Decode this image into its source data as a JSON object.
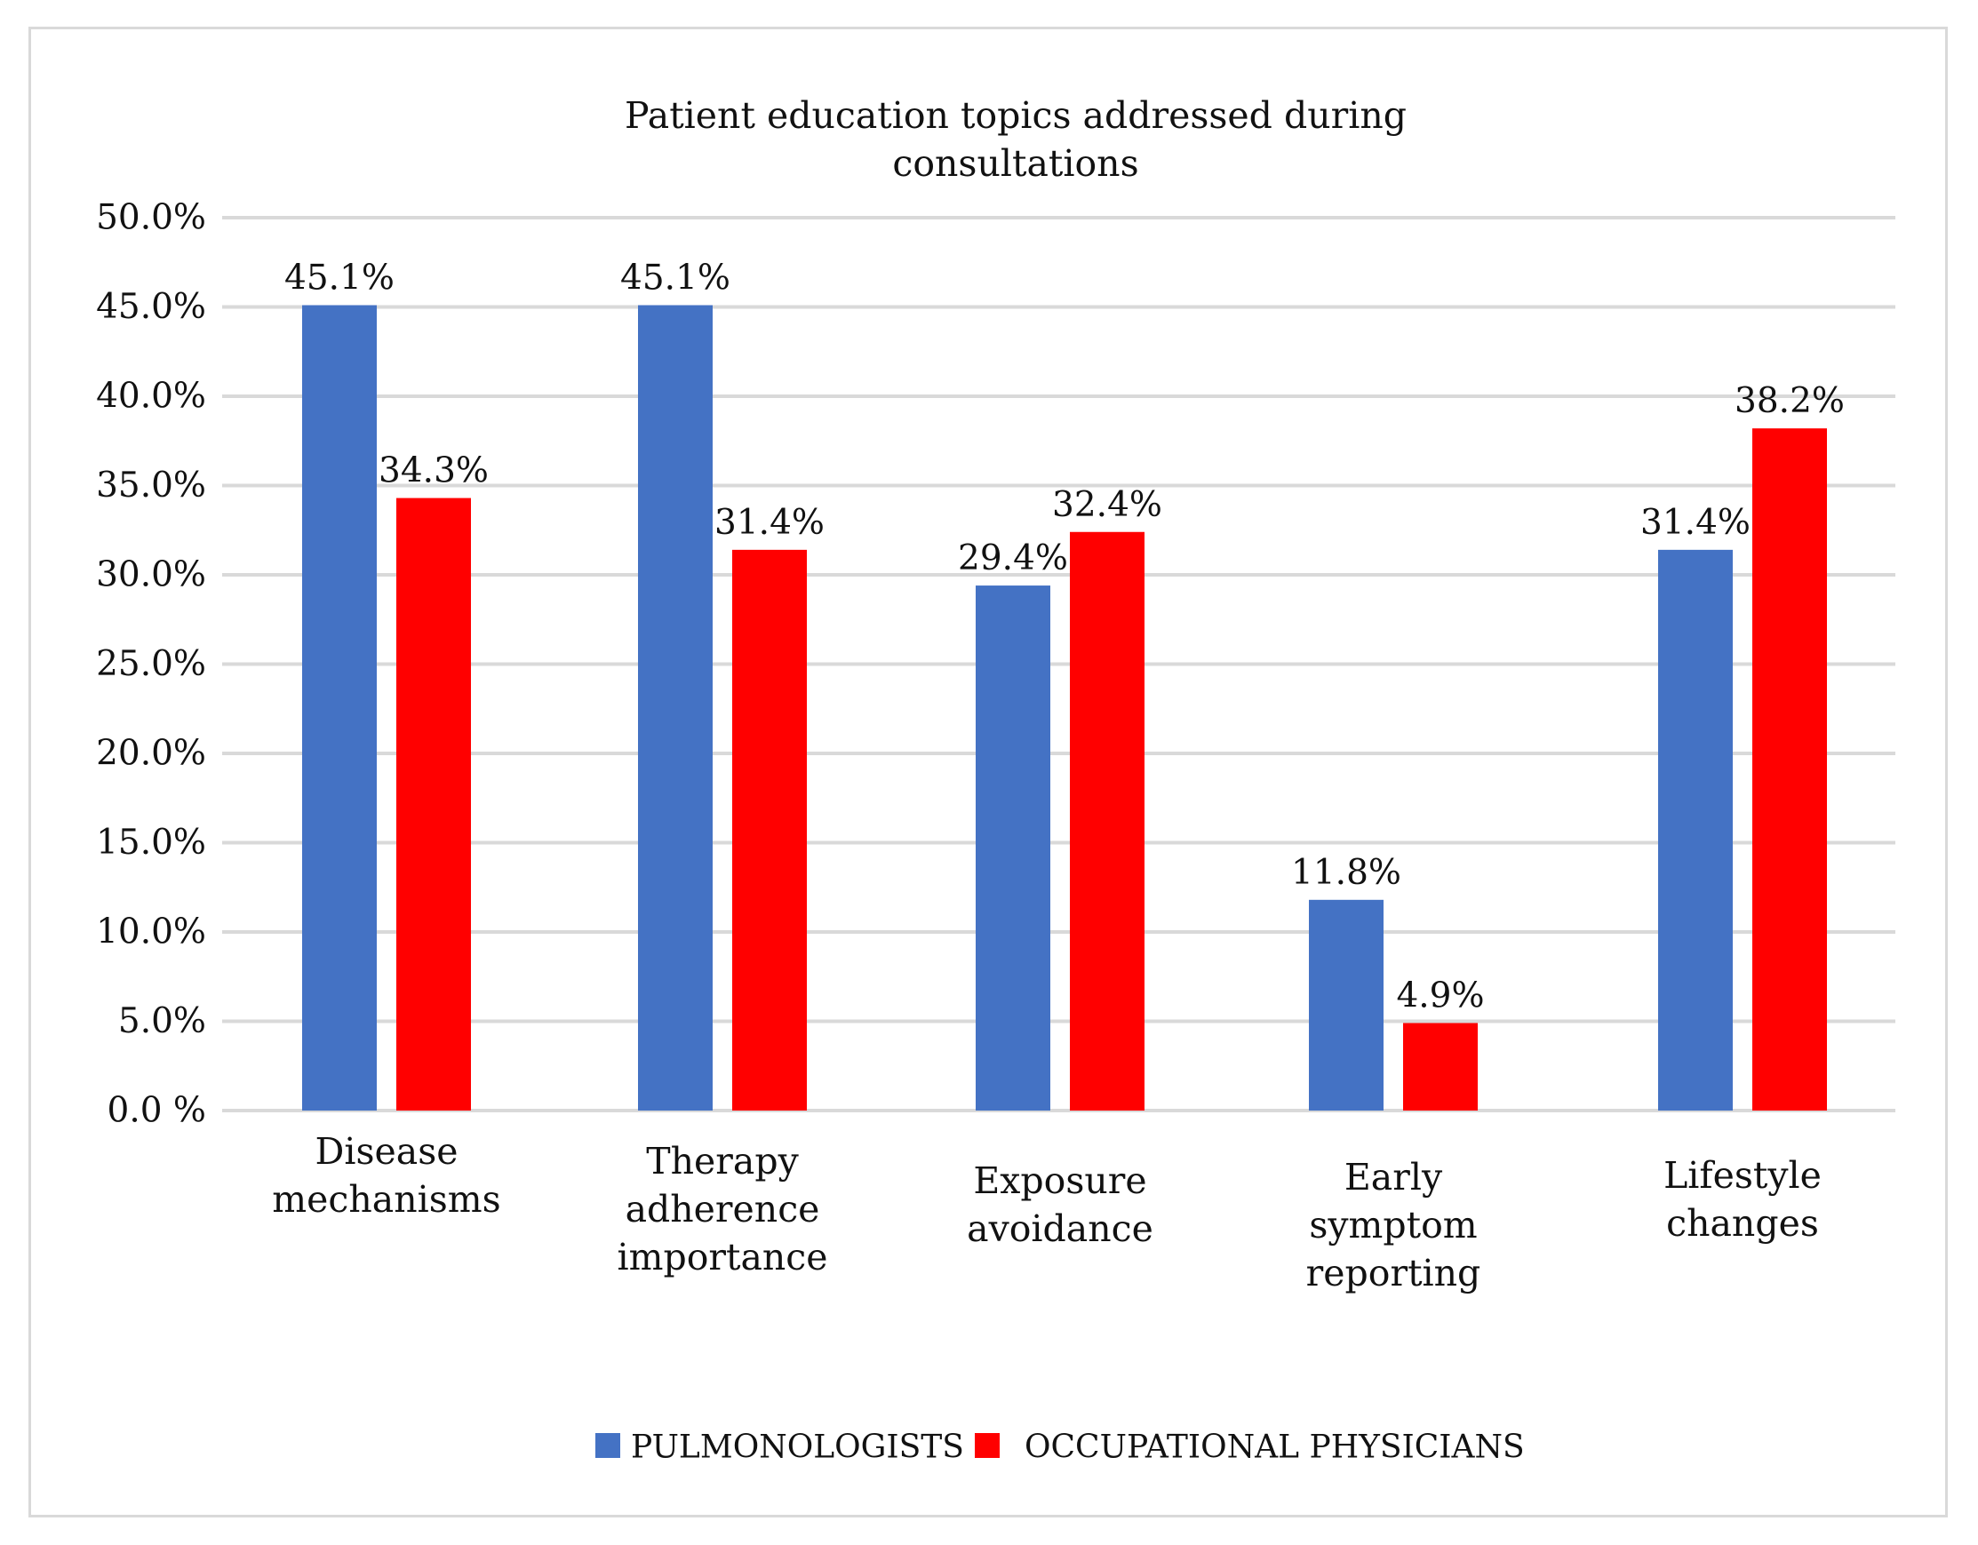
{
  "chart_data": {
    "type": "bar",
    "title_lines": [
      "Patient education topics addressed during",
      "consultations"
    ],
    "categories": [
      [
        "Disease",
        "mechanisms"
      ],
      [
        "Therapy",
        "adherence",
        "importance"
      ],
      [
        "Exposure",
        "avoidance"
      ],
      [
        "Early",
        "symptom",
        "reporting"
      ],
      [
        "Lifestyle",
        "changes"
      ]
    ],
    "series": [
      {
        "name": "PULMONOLOGISTS",
        "color": "#4472C4",
        "values": [
          45.1,
          45.1,
          29.4,
          11.8,
          31.4
        ],
        "labels": [
          "45.1%",
          "45.1%",
          "29.4%",
          "11.8%",
          "31.4%"
        ]
      },
      {
        "name": "OCCUPATIONAL PHYSICIANS",
        "color": "#FF0000",
        "values": [
          34.3,
          31.4,
          32.4,
          4.9,
          38.2
        ],
        "labels": [
          "34.3%",
          "31.4%",
          "32.4%",
          "4.9%",
          "38.2%"
        ]
      }
    ],
    "ylim": [
      0,
      50
    ],
    "yticks": [
      0,
      5,
      10,
      15,
      20,
      25,
      30,
      35,
      40,
      45,
      50
    ],
    "ytick_labels": [
      "0.0 %",
      "5.0%",
      "10.0%",
      "15.0%",
      "20.0%",
      "25.0%",
      "30.0%",
      "35.0%",
      "40.0%",
      "45.0%",
      "50.0%"
    ],
    "grid": true,
    "legend_position": "bottom-center",
    "xlabel": "",
    "ylabel": ""
  }
}
